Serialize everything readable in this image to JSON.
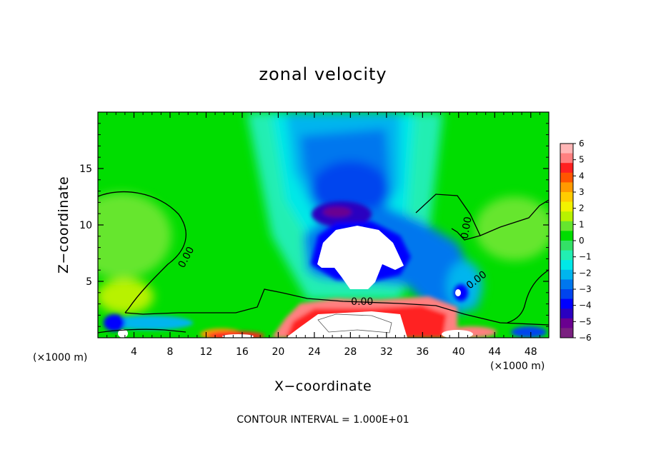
{
  "chart_data": {
    "type": "heatmap",
    "title": "zonal velocity",
    "xlabel": "X−coordinate",
    "ylabel": "Z−coordinate",
    "x_units": "(×1000 m)",
    "x_units_right": "(×1000 m)",
    "xlim": [
      0,
      50
    ],
    "ylim": [
      0,
      20
    ],
    "x_ticks": [
      4,
      8,
      12,
      16,
      20,
      24,
      28,
      32,
      36,
      40,
      44,
      48
    ],
    "y_ticks": [
      5,
      10,
      15
    ],
    "colorbar": {
      "range": [
        -6,
        6
      ],
      "labels": [
        "6",
        "5",
        "4",
        "3",
        "2",
        "1",
        "0",
        "−1",
        "−2",
        "−3",
        "−4",
        "−5",
        "−6"
      ],
      "colors": [
        "#ffb6b6",
        "#ff8080",
        "#ff2020",
        "#ff5500",
        "#ff9a00",
        "#ffcc00",
        "#f2f200",
        "#b8f200",
        "#66e62e",
        "#00dd00",
        "#33e066",
        "#22eeb2",
        "#00e8e8",
        "#00b5ee",
        "#0077ee",
        "#0044ee",
        "#0000ff",
        "#2a00c0",
        "#6a0090",
        "#7a2080"
      ]
    },
    "contour_labels": [
      {
        "text": "0.00",
        "x": 10.1,
        "z": 7.0
      },
      {
        "text": "0.00",
        "x": 29.3,
        "z": 2.9
      },
      {
        "text": "0.00",
        "x": 42.2,
        "z": 4.9
      },
      {
        "text": "0.00",
        "x": 41.2,
        "z": 9.7
      }
    ],
    "footer": "CONTOUR INTERVAL = 1.000E+01"
  }
}
